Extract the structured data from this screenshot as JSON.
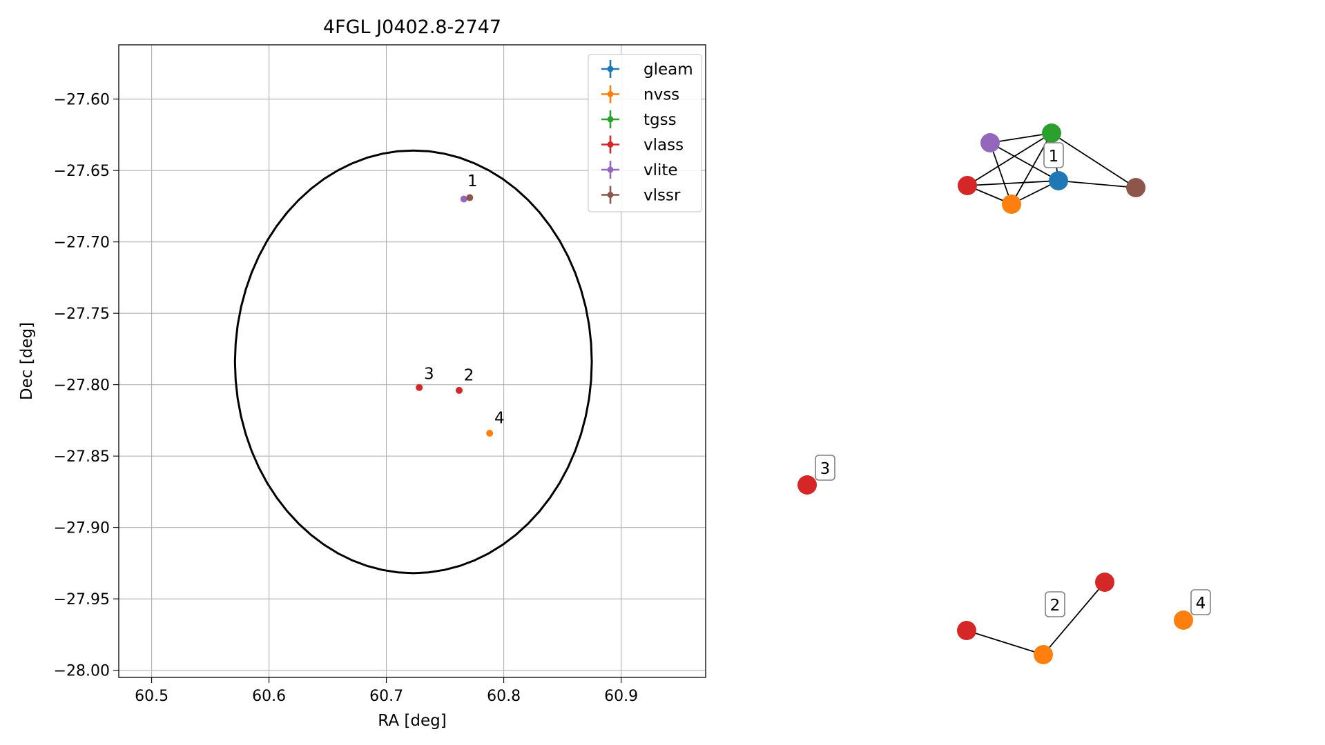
{
  "chart_data": [
    {
      "type": "scatter",
      "title": "4FGL J0402.8-2747",
      "xlabel": "RA [deg]",
      "ylabel": "Dec [deg]",
      "xlim": [
        60.472,
        60.972
      ],
      "ylim": [
        -28.005,
        -27.562
      ],
      "x_ticks": [
        60.5,
        60.6,
        60.7,
        60.8,
        60.9
      ],
      "x_tick_labels": [
        "60.5",
        "60.6",
        "60.7",
        "60.8",
        "60.9"
      ],
      "y_ticks": [
        -27.6,
        -27.65,
        -27.7,
        -27.75,
        -27.8,
        -27.85,
        -27.9,
        -27.95,
        -28.0
      ],
      "y_tick_labels": [
        "−27.60",
        "−27.65",
        "−27.70",
        "−27.75",
        "−27.80",
        "−27.85",
        "−27.90",
        "−27.95",
        "−28.00"
      ],
      "grid": true,
      "legend_position": "top-right",
      "series": [
        {
          "name": "gleam",
          "color": "#1f77b4",
          "points": []
        },
        {
          "name": "nvss",
          "color": "#ff7f0e",
          "points": [
            {
              "ra": 60.788,
              "dec": -27.834
            }
          ]
        },
        {
          "name": "tgss",
          "color": "#2ca02c",
          "points": []
        },
        {
          "name": "vlass",
          "color": "#d62728",
          "points": [
            {
              "ra": 60.728,
              "dec": -27.802
            },
            {
              "ra": 60.762,
              "dec": -27.804
            }
          ]
        },
        {
          "name": "vlite",
          "color": "#9467bd",
          "points": [
            {
              "ra": 60.766,
              "dec": -27.67
            }
          ]
        },
        {
          "name": "vlssr",
          "color": "#8c564b",
          "points": [
            {
              "ra": 60.771,
              "dec": -27.669
            }
          ]
        }
      ],
      "ellipse": {
        "center_ra": 60.723,
        "center_dec": -27.784,
        "semi_ra": 0.152,
        "semi_dec": 0.148
      },
      "annotations": [
        {
          "text": "1",
          "ra": 60.769,
          "dec": -27.661
        },
        {
          "text": "2",
          "ra": 60.766,
          "dec": -27.797
        },
        {
          "text": "3",
          "ra": 60.732,
          "dec": -27.796
        },
        {
          "text": "4",
          "ra": 60.792,
          "dec": -27.827
        }
      ]
    },
    {
      "type": "network",
      "nodes": [
        {
          "id": "g1-purple",
          "color": "#9467bd"
        },
        {
          "id": "g1-green",
          "color": "#2ca02c"
        },
        {
          "id": "g1-red",
          "color": "#d62728"
        },
        {
          "id": "g1-orange",
          "color": "#ff7f0e"
        },
        {
          "id": "g1-blue",
          "color": "#1f77b4"
        },
        {
          "id": "g1-brown",
          "color": "#8c564b"
        },
        {
          "id": "g3-red",
          "color": "#d62728"
        },
        {
          "id": "g2-red-left",
          "color": "#d62728"
        },
        {
          "id": "g2-orange",
          "color": "#ff7f0e"
        },
        {
          "id": "g2-red-right",
          "color": "#d62728"
        },
        {
          "id": "g4-orange",
          "color": "#ff7f0e"
        }
      ],
      "edges": [
        [
          "g1-purple",
          "g1-green"
        ],
        [
          "g1-purple",
          "g1-orange"
        ],
        [
          "g1-purple",
          "g1-blue"
        ],
        [
          "g1-green",
          "g1-red"
        ],
        [
          "g1-green",
          "g1-orange"
        ],
        [
          "g1-green",
          "g1-blue"
        ],
        [
          "g1-green",
          "g1-brown"
        ],
        [
          "g1-red",
          "g1-orange"
        ],
        [
          "g1-red",
          "g1-blue"
        ],
        [
          "g1-orange",
          "g1-blue"
        ],
        [
          "g1-blue",
          "g1-brown"
        ],
        [
          "g2-red-left",
          "g2-orange"
        ],
        [
          "g2-orange",
          "g2-red-right"
        ]
      ],
      "group_labels": [
        "1",
        "2",
        "3",
        "4"
      ]
    }
  ]
}
